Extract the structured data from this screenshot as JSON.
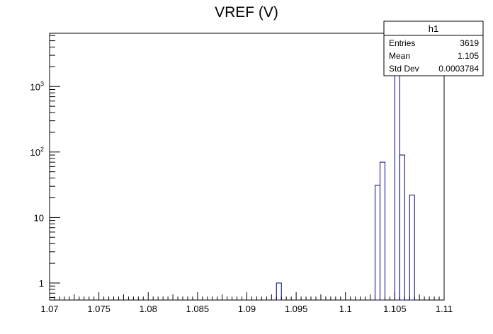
{
  "chart_data": {
    "type": "bar",
    "title": "VREF (V)",
    "xlabel": "",
    "ylabel": "",
    "xlim": [
      1.07,
      1.11
    ],
    "ylim": [
      0.55,
      6500
    ],
    "yscale": "log",
    "x_ticks": [
      "1.07",
      "1.075",
      "1.08",
      "1.085",
      "1.09",
      "1.095",
      "1.1",
      "1.105",
      "1.11"
    ],
    "y_ticks": [
      {
        "value": 1,
        "label": "1"
      },
      {
        "value": 10,
        "label": "10"
      },
      {
        "value": 100,
        "label": "10",
        "exp": "2"
      },
      {
        "value": 1000,
        "label": "10",
        "exp": "3"
      }
    ],
    "bin_width": 0.0005,
    "bins": [
      {
        "x": 1.093,
        "count": 1
      },
      {
        "x": 1.103,
        "count": 31
      },
      {
        "x": 1.1035,
        "count": 70
      },
      {
        "x": 1.105,
        "count": 3400
      },
      {
        "x": 1.1055,
        "count": 90
      },
      {
        "x": 1.1065,
        "count": 22
      }
    ],
    "grid": false,
    "stats_box": {
      "title": "h1",
      "rows": [
        {
          "label": "Entries",
          "value": "3619"
        },
        {
          "label": "Mean",
          "value": "1.105"
        },
        {
          "label": "Std Dev",
          "value": "0.0003784"
        }
      ],
      "placement": "top-right"
    },
    "colors": {
      "bar_stroke": "#000080",
      "bar_fill": "#ffffff",
      "axis": "#000000"
    }
  }
}
